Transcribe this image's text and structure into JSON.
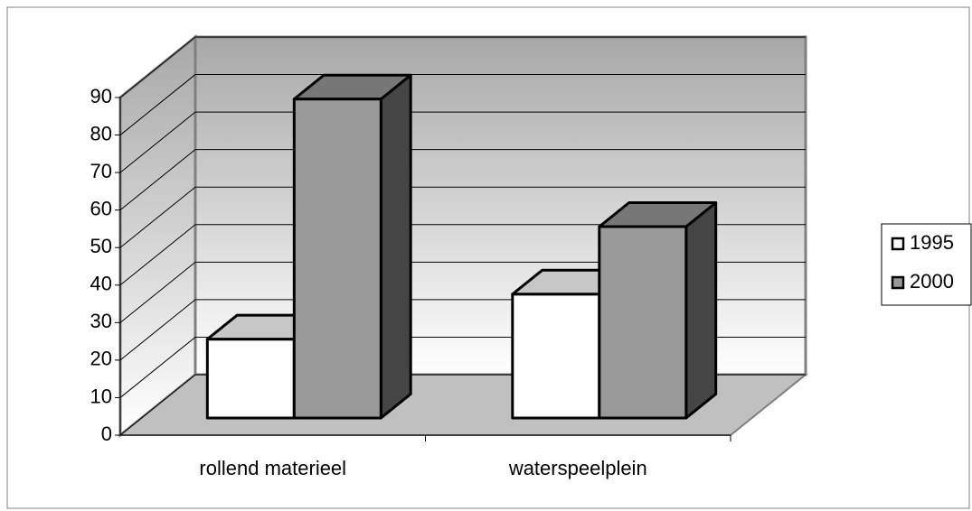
{
  "chart_data": {
    "type": "bar3d",
    "categories": [
      "rollend materieel",
      "waterspeelplein"
    ],
    "series": [
      {
        "name": "1995",
        "color": "#ffffff",
        "values": [
          21,
          33
        ]
      },
      {
        "name": "2000",
        "color": "#999999",
        "values": [
          85,
          51
        ]
      }
    ],
    "ylim": [
      0,
      90
    ],
    "yticks": [
      0,
      10,
      20,
      30,
      40,
      50,
      60,
      70,
      80,
      90
    ],
    "grid": true,
    "legend": "right"
  }
}
